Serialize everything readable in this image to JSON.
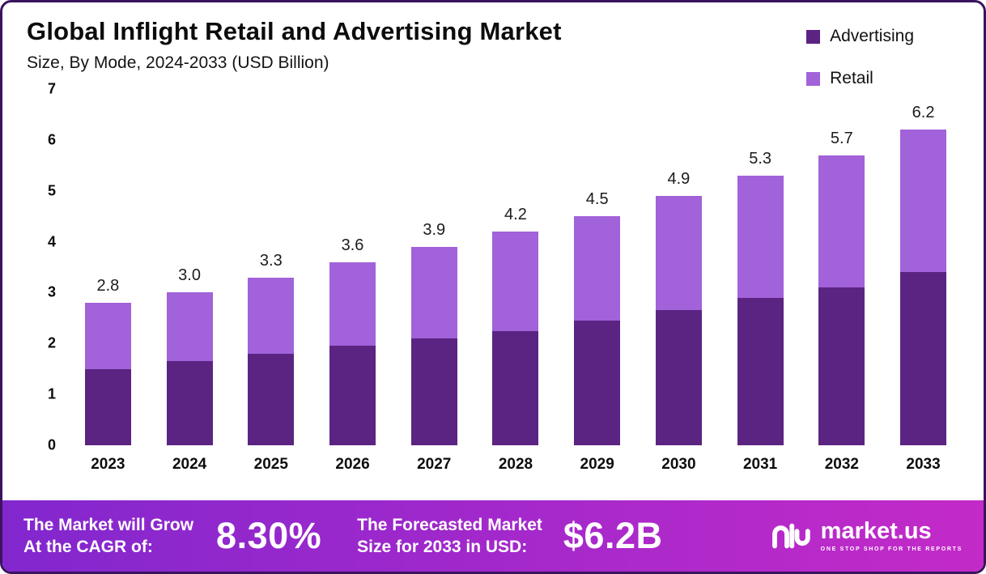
{
  "chart_data": {
    "type": "bar",
    "stacked": true,
    "title": "Global Inflight Retail and Advertising Market",
    "subtitle": "Size, By Mode, 2024-2033 (USD Billion)",
    "categories": [
      "2023",
      "2024",
      "2025",
      "2026",
      "2027",
      "2028",
      "2029",
      "2030",
      "2031",
      "2032",
      "2033"
    ],
    "series": [
      {
        "name": "Advertising",
        "color": "#5b2483",
        "values": [
          1.5,
          1.65,
          1.8,
          1.95,
          2.1,
          2.25,
          2.45,
          2.65,
          2.9,
          3.1,
          3.4
        ]
      },
      {
        "name": "Retail",
        "color": "#a262d9",
        "values": [
          1.3,
          1.35,
          1.5,
          1.65,
          1.8,
          1.95,
          2.05,
          2.25,
          2.4,
          2.6,
          2.8
        ]
      }
    ],
    "totals_labels": [
      "2.8",
      "3.0",
      "3.3",
      "3.6",
      "3.9",
      "4.2",
      "4.5",
      "4.9",
      "5.3",
      "5.7",
      "6.2"
    ],
    "xlabel": "",
    "ylabel": "",
    "ylim": [
      0,
      7
    ],
    "yticks": [
      0,
      1,
      2,
      3,
      4,
      5,
      6,
      7
    ],
    "legend_position": "top-right",
    "grid": false
  },
  "banner": {
    "cagr_label_line1": "The Market will Grow",
    "cagr_label_line2": "At the CAGR of:",
    "cagr_value": "8.30%",
    "forecast_label_line1": "The Forecasted Market",
    "forecast_label_line2": "Size for 2033 in USD:",
    "forecast_value": "$6.2B",
    "brand_name": "market.us",
    "brand_tagline": "ONE STOP SHOP FOR THE REPORTS"
  },
  "colors": {
    "advertising": "#5b2483",
    "retail": "#a262d9",
    "banner_gradient_start": "#8227ce",
    "banner_gradient_end": "#c32ac8",
    "card_border": "#3a135f",
    "text": "#0d0d0d"
  }
}
